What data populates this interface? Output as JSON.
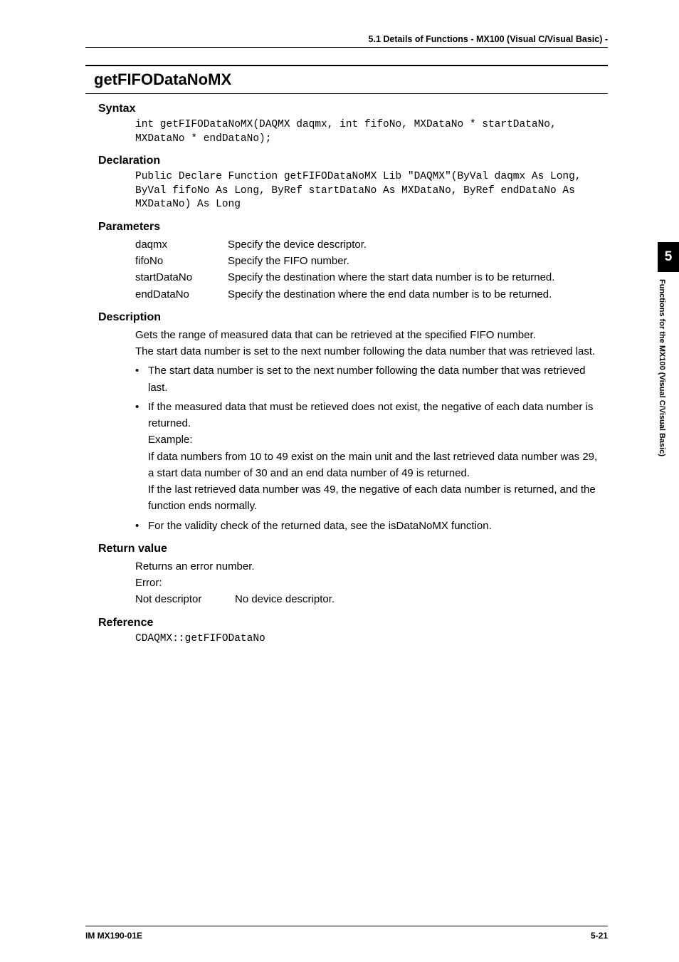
{
  "header": {
    "running_head": "5.1  Details of Functions - MX100 (Visual C/Visual Basic) -"
  },
  "function": {
    "name": "getFIFODataNoMX"
  },
  "syntax": {
    "heading": "Syntax",
    "code": "int getFIFODataNoMX(DAQMX daqmx, int fifoNo, MXDataNo * startDataNo, MXDataNo * endDataNo);"
  },
  "declaration": {
    "heading": "Declaration",
    "code": "Public Declare Function getFIFODataNoMX Lib \"DAQMX\"(ByVal daqmx As Long, ByVal fifoNo As Long, ByRef startDataNo As MXDataNo, ByRef endDataNo As MXDataNo) As Long"
  },
  "parameters": {
    "heading": "Parameters",
    "rows": [
      {
        "name": "daqmx",
        "desc": "Specify the device descriptor."
      },
      {
        "name": "fifoNo",
        "desc": "Specify the FIFO number."
      },
      {
        "name": "startDataNo",
        "desc": "Specify the destination where the start data number is to be returned."
      },
      {
        "name": "endDataNo",
        "desc": "Specify the destination where the end data number is to be returned."
      }
    ]
  },
  "description": {
    "heading": "Description",
    "intro1": "Gets the range of measured data that can be retrieved at the specified FIFO number.",
    "intro2": "The start data number is set to the next number following the data number that was retrieved last.",
    "bullets": [
      "The start data number is set to the next number following the data number that was retrieved last.",
      "If the measured data that must be retieved does not exist, the negative of each data number is returned."
    ],
    "example_label": "Example:",
    "example_body1": "If data numbers from 10 to 49 exist on the main unit and the last retrieved data number was 29, a start data number of 30 and an end data number of 49 is returned.",
    "example_body2": "If the last retrieved data number was 49, the negative of each data number is returned, and the function ends normally.",
    "bullet3": "For the validity check of the returned data, see the isDataNoMX function."
  },
  "return": {
    "heading": "Return value",
    "body": "Returns an error number.",
    "error_label": "Error:",
    "rows": [
      {
        "name": "Not descriptor",
        "desc": "No device descriptor."
      }
    ]
  },
  "reference": {
    "heading": "Reference",
    "code": "CDAQMX::getFIFODataNo"
  },
  "sidetab": {
    "chapter": "5",
    "label": "Functions for the MX100 (Visual C/Visual Basic)"
  },
  "footer": {
    "left": "IM MX190-01E",
    "right": "5-21"
  },
  "style": {
    "background": "#ffffff",
    "text_color": "#000000",
    "code_font": "Courier New",
    "body_font": "Arial"
  }
}
